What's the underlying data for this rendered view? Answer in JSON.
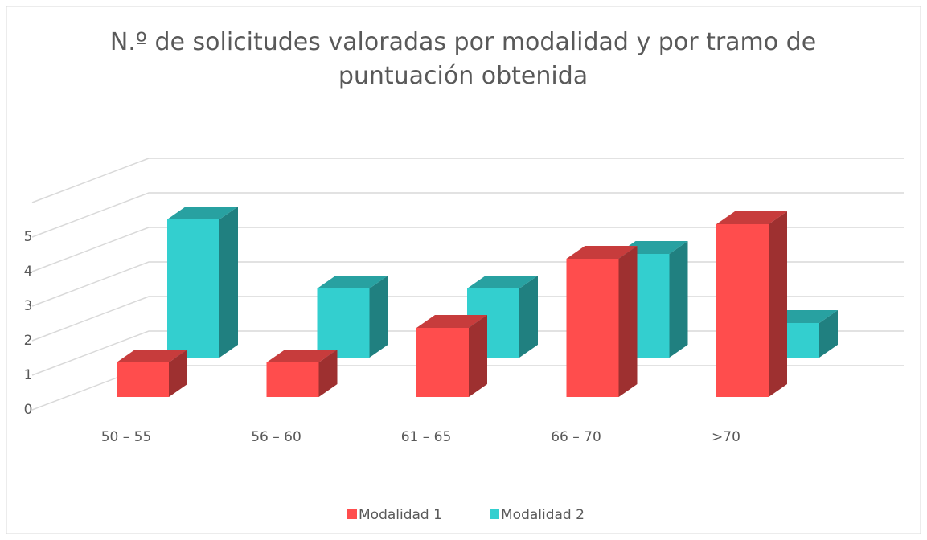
{
  "chart_data": {
    "type": "bar3d",
    "title": "N.º de solicitudes valoradas por modalidad y por tramo de puntuación obtenida",
    "categories": [
      "50 – 55",
      "56 – 60",
      "61 – 65",
      "66 – 70",
      ">70"
    ],
    "series": [
      {
        "name": "Modalidad 1",
        "color": "#ff4d4d",
        "values": [
          1,
          1,
          2,
          4,
          5
        ]
      },
      {
        "name": "Modalidad 2",
        "color": "#33cfcf",
        "values": [
          4,
          2,
          2,
          3,
          1
        ]
      }
    ],
    "ylim": [
      0,
      6
    ],
    "yticks": [
      0,
      1,
      2,
      3,
      4,
      5
    ],
    "grid": true,
    "legend": "bottom"
  }
}
